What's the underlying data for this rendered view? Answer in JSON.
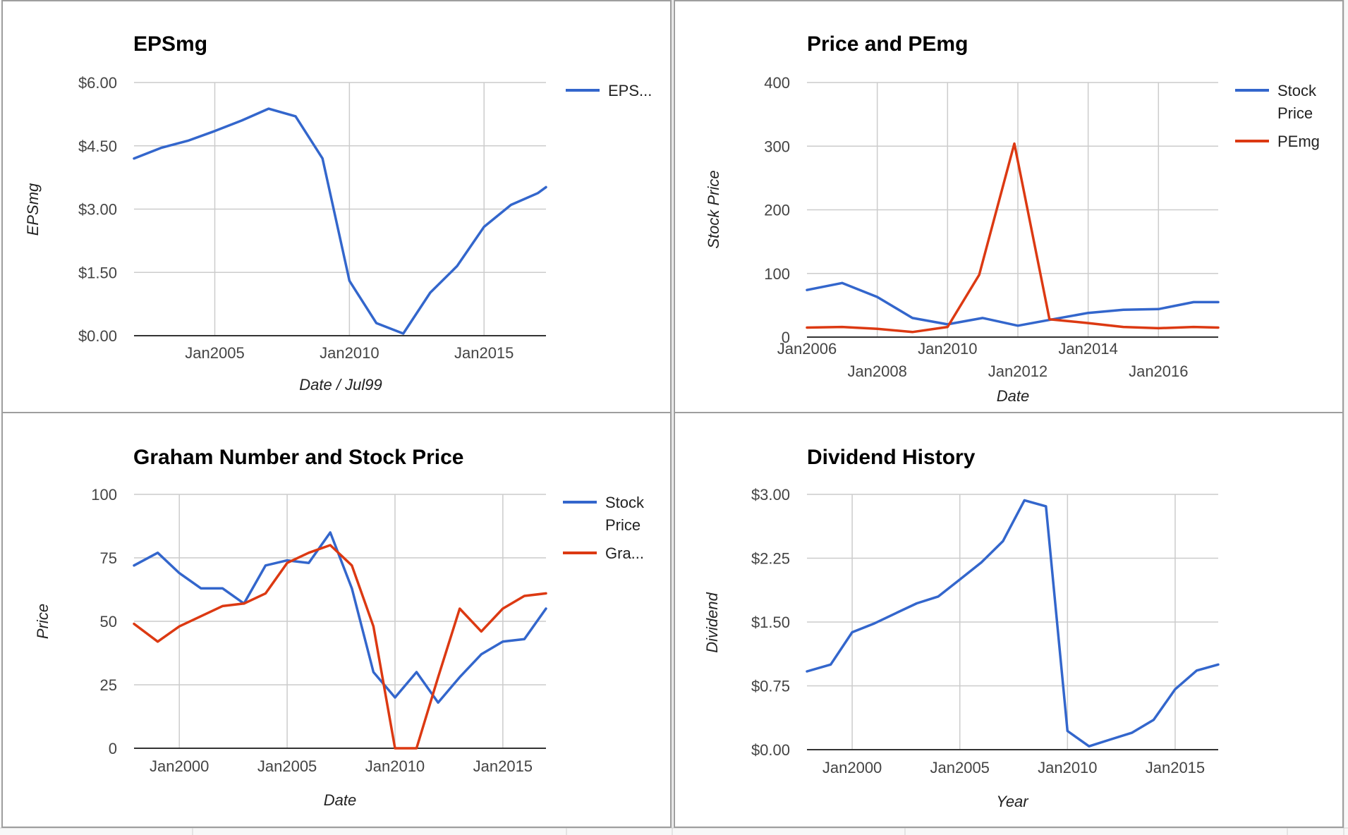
{
  "chart_data": [
    {
      "type": "line",
      "title": "EPSmg",
      "xlabel": "Date / Jul99",
      "ylabel": "EPSmg",
      "x_ticks": [
        "Jan2005",
        "Jan2010",
        "Jan2015"
      ],
      "y_ticks": [
        "$0.00",
        "$1.50",
        "$3.00",
        "$4.50",
        "$6.00"
      ],
      "ylim": [
        0,
        6
      ],
      "xlim": [
        2002.0,
        2017.3
      ],
      "grid": true,
      "legend_position": "right",
      "series": [
        {
          "name": "EPS...",
          "color": "#3366cc",
          "x": [
            2002.0,
            2003.0,
            2004.0,
            2005.0,
            2006.0,
            2007.0,
            2008.0,
            2009.0,
            2010.0,
            2011.0,
            2012.0,
            2013.0,
            2014.0,
            2015.0,
            2016.0,
            2017.0,
            2017.3
          ],
          "values": [
            4.2,
            4.45,
            4.62,
            4.85,
            5.1,
            5.38,
            5.2,
            4.2,
            1.3,
            0.3,
            0.05,
            1.02,
            1.65,
            2.58,
            3.1,
            3.38,
            3.52
          ]
        }
      ]
    },
    {
      "type": "line",
      "title": "Price and PEmg",
      "xlabel": "Date",
      "ylabel": "Stock Price",
      "x_ticks": [
        "Jan2006",
        "Jan2008",
        "Jan2010",
        "Jan2012",
        "Jan2014",
        "Jan2016"
      ],
      "y_ticks": [
        "0",
        "100",
        "200",
        "300",
        "400"
      ],
      "ylim": [
        0,
        400
      ],
      "xlim": [
        2006.0,
        2017.7
      ],
      "grid": true,
      "legend_position": "right",
      "series": [
        {
          "name": "Stock Price",
          "color": "#3366cc",
          "x": [
            2006.0,
            2007.0,
            2008.0,
            2009.0,
            2010.0,
            2011.0,
            2012.0,
            2013.0,
            2014.0,
            2015.0,
            2016.0,
            2017.0,
            2017.7
          ],
          "values": [
            74,
            85,
            63,
            30,
            20,
            30,
            18,
            28,
            38,
            43,
            44,
            55,
            55
          ]
        },
        {
          "name": "PEmg",
          "color": "#dc3912",
          "x": [
            2006.0,
            2007.0,
            2008.0,
            2009.0,
            2010.0,
            2010.9,
            2011.9,
            2012.9,
            2014.0,
            2015.0,
            2016.0,
            2017.0,
            2017.7
          ],
          "values": [
            15,
            16,
            13,
            8,
            16,
            98,
            304,
            28,
            22,
            16,
            14,
            16,
            15
          ]
        }
      ]
    },
    {
      "type": "line",
      "title": "Graham Number and Stock Price",
      "xlabel": "Date",
      "ylabel": "Price",
      "x_ticks": [
        "Jan2000",
        "Jan2005",
        "Jan2010",
        "Jan2015"
      ],
      "y_ticks": [
        "0",
        "25",
        "50",
        "75",
        "100"
      ],
      "ylim": [
        0,
        100
      ],
      "xlim": [
        1997.9,
        2017.0
      ],
      "grid": true,
      "legend_position": "right",
      "series": [
        {
          "name": "Stock Price",
          "color": "#3366cc",
          "x": [
            1997.9,
            1999.0,
            2000.0,
            2001.0,
            2002.0,
            2003.0,
            2004.0,
            2005.0,
            2006.0,
            2007.0,
            2008.0,
            2009.0,
            2010.0,
            2011.0,
            2012.0,
            2013.0,
            2014.0,
            2015.0,
            2016.0,
            2017.0
          ],
          "values": [
            72,
            77,
            69,
            63,
            63,
            57,
            72,
            74,
            73,
            85,
            63,
            30,
            20,
            30,
            18,
            28,
            37,
            42,
            43,
            55
          ]
        },
        {
          "name": "Gra...",
          "color": "#dc3912",
          "x": [
            1997.9,
            1999.0,
            2000.0,
            2001.0,
            2002.0,
            2003.0,
            2004.0,
            2005.0,
            2006.0,
            2007.0,
            2008.0,
            2009.0,
            2010.0,
            2011.0,
            2012.0,
            2013.0,
            2014.0,
            2015.0,
            2016.0,
            2017.0
          ],
          "values": [
            49,
            42,
            48,
            52,
            56,
            57,
            61,
            73,
            77,
            80,
            72,
            48,
            0,
            0,
            28,
            55,
            46,
            55,
            60,
            61
          ]
        }
      ]
    },
    {
      "type": "line",
      "title": "Dividend History",
      "xlabel": "Year",
      "ylabel": "Dividend",
      "x_ticks": [
        "Jan2000",
        "Jan2005",
        "Jan2010",
        "Jan2015"
      ],
      "y_ticks": [
        "$0.00",
        "$0.75",
        "$1.50",
        "$2.25",
        "$3.00"
      ],
      "ylim": [
        0,
        3
      ],
      "xlim": [
        1997.9,
        2017.0
      ],
      "grid": true,
      "legend_position": "none",
      "series": [
        {
          "name": "",
          "color": "#3366cc",
          "x": [
            1997.9,
            1999.0,
            2000.0,
            2001.0,
            2002.0,
            2003.0,
            2004.0,
            2005.0,
            2006.0,
            2007.0,
            2008.0,
            2009.0,
            2010.0,
            2011.0,
            2012.0,
            2013.0,
            2014.0,
            2015.0,
            2016.0,
            2017.0
          ],
          "values": [
            0.92,
            1.0,
            1.38,
            1.48,
            1.6,
            1.72,
            1.8,
            2.0,
            2.2,
            2.45,
            2.93,
            2.86,
            0.22,
            0.04,
            0.12,
            0.2,
            0.35,
            0.71,
            0.93,
            1.0
          ]
        }
      ]
    }
  ]
}
